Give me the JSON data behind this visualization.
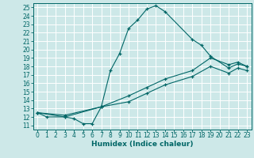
{
  "xlabel": "Humidex (Indice chaleur)",
  "bg_color": "#cde8e8",
  "line_color": "#006666",
  "grid_color": "#ffffff",
  "xlim": [
    -0.5,
    23.5
  ],
  "ylim": [
    10.5,
    25.5
  ],
  "xticks": [
    0,
    1,
    2,
    3,
    4,
    5,
    6,
    7,
    8,
    9,
    10,
    11,
    12,
    13,
    14,
    15,
    16,
    17,
    18,
    19,
    20,
    21,
    22,
    23
  ],
  "yticks": [
    11,
    12,
    13,
    14,
    15,
    16,
    17,
    18,
    19,
    20,
    21,
    22,
    23,
    24,
    25
  ],
  "curve1_x": [
    0,
    1,
    3,
    4,
    5,
    6,
    7,
    8,
    9,
    10,
    11,
    12,
    13,
    14,
    17,
    18,
    19,
    21,
    22,
    23
  ],
  "curve1_y": [
    12.5,
    12.0,
    12.0,
    11.8,
    11.2,
    11.2,
    13.2,
    17.5,
    19.5,
    22.5,
    23.5,
    24.8,
    25.2,
    24.5,
    21.2,
    20.5,
    19.2,
    17.8,
    18.3,
    18.0
  ],
  "curve2_x": [
    0,
    3,
    7,
    10,
    12,
    14,
    17,
    19,
    21,
    22,
    23
  ],
  "curve2_y": [
    12.5,
    12.2,
    13.2,
    14.5,
    15.5,
    16.5,
    17.5,
    19.0,
    18.2,
    18.5,
    18.0
  ],
  "curve3_x": [
    0,
    3,
    7,
    10,
    12,
    14,
    17,
    19,
    21,
    22,
    23
  ],
  "curve3_y": [
    12.5,
    12.0,
    13.2,
    13.8,
    14.8,
    15.8,
    16.8,
    18.0,
    17.2,
    17.8,
    17.5
  ],
  "tick_fontsize": 5.5,
  "xlabel_fontsize": 6.5
}
